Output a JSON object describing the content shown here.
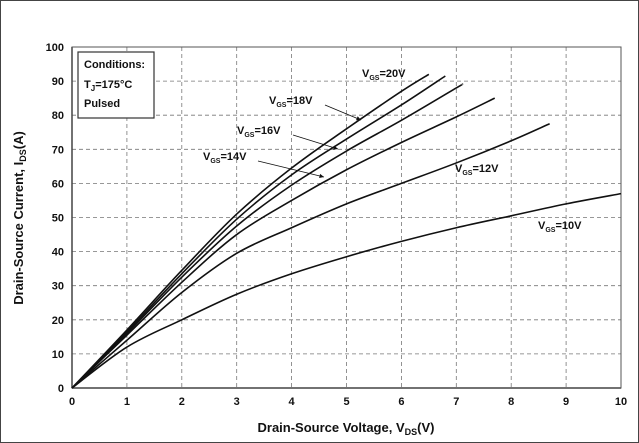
{
  "chart_data": {
    "type": "line",
    "xlabel": "Drain-Source Voltage, V",
    "xlabel_sub": "DS",
    "xlabel_unit": "(V)",
    "ylabel": "Drain-Source Current, I",
    "ylabel_sub": "DS",
    "ylabel_unit": "(A)",
    "xlim": [
      0,
      10
    ],
    "ylim": [
      0,
      100
    ],
    "xticks": [
      0,
      1,
      2,
      3,
      4,
      5,
      6,
      7,
      8,
      9,
      10
    ],
    "yticks": [
      0,
      10,
      20,
      30,
      40,
      50,
      60,
      70,
      80,
      90,
      100
    ],
    "grid": true,
    "grid_style": "dashed",
    "conditions": {
      "title": "Conditions:",
      "temp_prefix": "T",
      "temp_sub": "J",
      "temp_value": "=175°C",
      "mode": "Pulsed"
    },
    "series": [
      {
        "name": "V",
        "sub": "GS",
        "suffix": "=10V",
        "x": [
          0,
          1,
          2,
          3,
          4,
          5,
          6,
          7,
          8,
          9,
          10
        ],
        "y": [
          0,
          12,
          20,
          27.5,
          33.5,
          38.5,
          43,
          47,
          50.5,
          54,
          57
        ]
      },
      {
        "name": "V",
        "sub": "GS",
        "suffix": "=12V",
        "x": [
          0,
          1,
          2,
          3,
          4,
          5,
          6,
          7,
          8,
          8.7
        ],
        "y": [
          0,
          14,
          28,
          39.5,
          47,
          54,
          60,
          66,
          72.5,
          77.5
        ]
      },
      {
        "name": "V",
        "sub": "GS",
        "suffix": "=14V",
        "x": [
          0,
          1,
          2,
          3,
          4,
          5,
          6,
          7,
          7.7
        ],
        "y": [
          0,
          15.5,
          31,
          45,
          55,
          64,
          72,
          79.5,
          85
        ]
      },
      {
        "name": "V",
        "sub": "GS",
        "suffix": "=16V",
        "x": [
          0,
          1,
          2,
          3,
          4,
          5,
          6,
          7,
          7.1
        ],
        "y": [
          0,
          16,
          32.5,
          47.5,
          59.5,
          69.5,
          78.5,
          88,
          89
        ]
      },
      {
        "name": "V",
        "sub": "GS",
        "suffix": "=18V",
        "x": [
          0,
          1,
          2,
          3,
          4,
          5,
          6,
          6.8
        ],
        "y": [
          0,
          16.5,
          33.5,
          49.5,
          62.5,
          73,
          83,
          91.5
        ]
      },
      {
        "name": "V",
        "sub": "GS",
        "suffix": "=20V",
        "x": [
          0,
          1,
          2,
          3,
          4,
          5,
          6,
          6.5
        ],
        "y": [
          0,
          17,
          34.5,
          51,
          64.5,
          76,
          87,
          92
        ]
      }
    ]
  }
}
